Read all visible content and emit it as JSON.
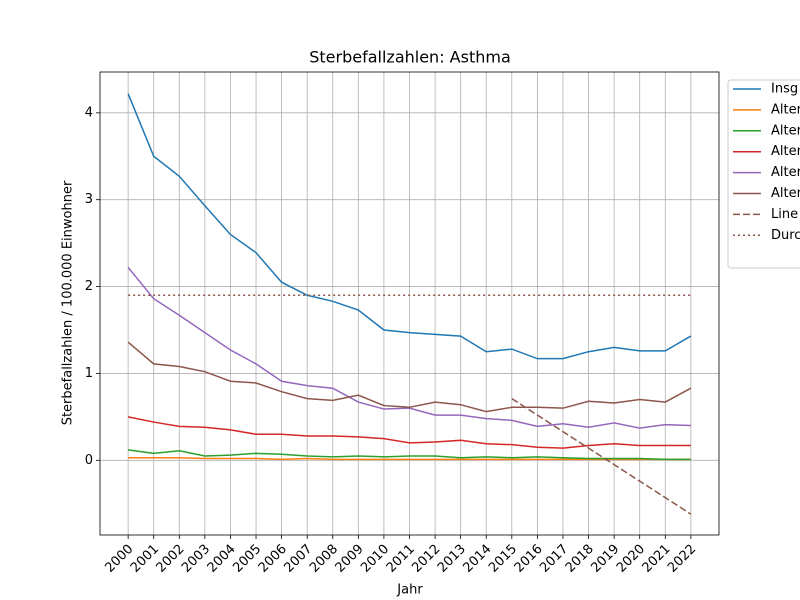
{
  "chart_data": {
    "type": "line",
    "title": "Sterbefallzahlen: Asthma",
    "xlabel": "Jahr",
    "ylabel": "Sterbefallzahlen / 100.000 Einwohner",
    "x": [
      2000,
      2001,
      2002,
      2003,
      2004,
      2005,
      2006,
      2007,
      2008,
      2009,
      2010,
      2011,
      2012,
      2013,
      2014,
      2015,
      2016,
      2017,
      2018,
      2019,
      2020,
      2021,
      2022
    ],
    "xlim": [
      1998.9,
      2023.1
    ],
    "xticks": [
      2000,
      2001,
      2002,
      2003,
      2004,
      2005,
      2006,
      2007,
      2008,
      2009,
      2010,
      2011,
      2012,
      2013,
      2014,
      2015,
      2016,
      2017,
      2018,
      2019,
      2020,
      2021,
      2022
    ],
    "ylim": [
      -0.86,
      4.47
    ],
    "yticks": [
      0,
      1,
      2,
      3,
      4
    ],
    "grid": true,
    "legend": "upper right outside",
    "series": [
      {
        "name": "Insg",
        "color": "#1f77b4",
        "style": "solid",
        "values": [
          4.22,
          3.5,
          3.27,
          2.93,
          2.6,
          2.39,
          2.05,
          1.9,
          1.83,
          1.73,
          1.5,
          1.47,
          1.45,
          1.43,
          1.25,
          1.28,
          1.17,
          1.17,
          1.25,
          1.3,
          1.26,
          1.26,
          1.43
        ]
      },
      {
        "name": "Alter",
        "color": "#ff7f0e",
        "style": "solid",
        "values": [
          0.03,
          0.03,
          0.03,
          0.02,
          0.02,
          0.02,
          0.01,
          0.02,
          0.01,
          0.01,
          0.01,
          0.01,
          0.01,
          0.01,
          0.01,
          0.01,
          0.01,
          0.01,
          0.01,
          0.01,
          0.01,
          0.01,
          0.01
        ]
      },
      {
        "name": "Alter",
        "color": "#2ca02c",
        "style": "solid",
        "values": [
          0.12,
          0.08,
          0.11,
          0.05,
          0.06,
          0.08,
          0.07,
          0.05,
          0.04,
          0.05,
          0.04,
          0.05,
          0.05,
          0.03,
          0.04,
          0.03,
          0.04,
          0.03,
          0.02,
          0.02,
          0.02,
          0.01,
          0.01
        ]
      },
      {
        "name": "Alter",
        "color": "#d62728",
        "style": "solid",
        "values": [
          0.5,
          0.44,
          0.39,
          0.38,
          0.35,
          0.3,
          0.3,
          0.28,
          0.28,
          0.27,
          0.25,
          0.2,
          0.21,
          0.23,
          0.19,
          0.18,
          0.15,
          0.14,
          0.17,
          0.19,
          0.17,
          0.17,
          0.17
        ]
      },
      {
        "name": "Alter",
        "color": "#9467bd",
        "style": "solid",
        "values": [
          2.22,
          1.86,
          1.67,
          1.47,
          1.27,
          1.11,
          0.91,
          0.86,
          0.83,
          0.67,
          0.59,
          0.6,
          0.52,
          0.52,
          0.48,
          0.46,
          0.39,
          0.42,
          0.38,
          0.43,
          0.37,
          0.41,
          0.4
        ]
      },
      {
        "name": "Alter",
        "color": "#8c564b",
        "style": "solid",
        "values": [
          1.36,
          1.11,
          1.08,
          1.02,
          0.91,
          0.89,
          0.79,
          0.71,
          0.69,
          0.75,
          0.63,
          0.61,
          0.67,
          0.64,
          0.56,
          0.61,
          0.61,
          0.6,
          0.68,
          0.66,
          0.7,
          0.67,
          0.83
        ]
      },
      {
        "name": "Line",
        "color": "#8c564b",
        "style": "dashed",
        "x": [
          2015,
          2016,
          2017,
          2018,
          2019,
          2020,
          2021,
          2022
        ],
        "values": [
          0.71,
          0.52,
          0.33,
          0.14,
          -0.05,
          -0.24,
          -0.43,
          -0.62
        ]
      },
      {
        "name": "Durc",
        "color": "#8c564b",
        "style": "dotted",
        "x": [
          2000,
          2022
        ],
        "values": [
          1.9,
          1.9
        ]
      }
    ]
  }
}
